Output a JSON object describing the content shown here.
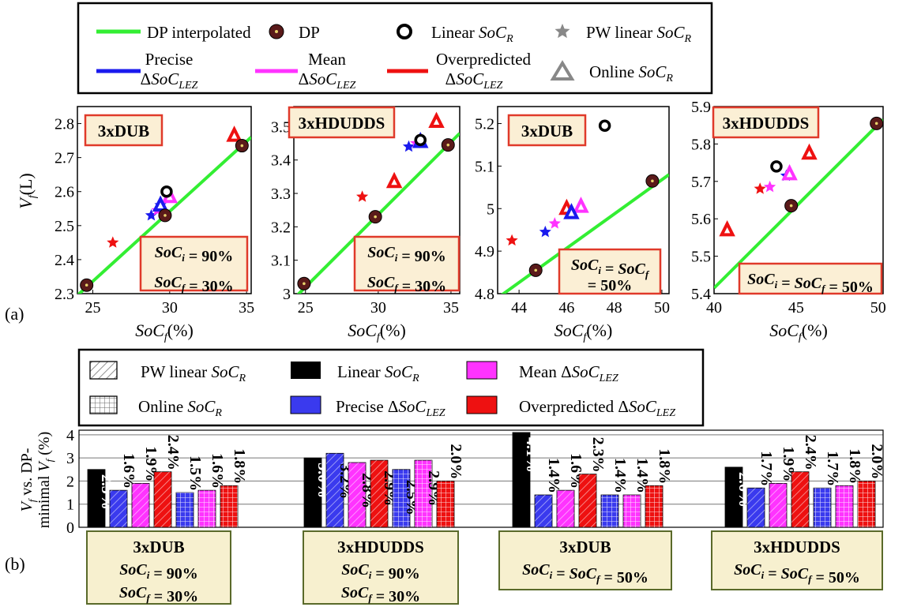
{
  "panel_labels": {
    "a": "(a)",
    "b": "(b)"
  },
  "colors": {
    "dp_line": "#33ee33",
    "dp": "#5a1a1a",
    "linear": "#000000",
    "pw_linear": "#ee1111",
    "online": "#ee1111",
    "precise": "#1a1aee",
    "mean": "#ff33ff",
    "overpredicted": "#ee1111",
    "box_fill": "#fbefd5",
    "box_border": "#e03a2a",
    "bbox_fill": "#f7f0cf",
    "bbox_border": "#5a6a2a"
  },
  "legend_a": {
    "dp_interpolated": "DP interpolated",
    "dp": "DP",
    "linear": "Linear",
    "pw_linear": "PW linear",
    "precise_1": "Precise",
    "mean_1": "Mean",
    "over_1": "Overpredicted",
    "online": "Online",
    "soc": "SoC",
    "r": "R",
    "lez": "LEZ",
    "delta": "Δ"
  },
  "legend_b": {
    "pw_linear": "PW linear",
    "linear": "Linear",
    "mean": "Mean",
    "online": "Online",
    "precise": "Precise",
    "over": "Overpredicted",
    "delta": "Δ",
    "soc": "SoC",
    "r": "R",
    "lez": "LEZ"
  },
  "axis_labels": {
    "ya_v": "V",
    "ya_f": "f",
    "ya_unit": "(L)",
    "xa_soc": "SoC",
    "xa_f": "f",
    "xa_unit": "(%)",
    "yb_line1_v": "V",
    "yb_line1_f": "f",
    "yb_line1_rest": " vs. DP-",
    "yb_line2_a": "minimal ",
    "yb_line2_v": "V",
    "yb_line2_f": "f",
    "yb_line2_unit": " (%)"
  },
  "chart_data": [
    {
      "type": "scatter",
      "title": "3xDUB",
      "box_lines": [
        "SoCi = 90%",
        "SoCf = 30%"
      ],
      "xlabel": "SoCf (%)",
      "ylabel": "Vf (L)",
      "xlim": [
        24,
        35.3
      ],
      "ylim": [
        2.3,
        2.85
      ],
      "xticks": [
        25,
        30,
        35
      ],
      "yticks": [
        2.3,
        2.4,
        2.5,
        2.6,
        2.7,
        2.8
      ],
      "dp_interpolated": [
        [
          24,
          2.295
        ],
        [
          35.3,
          2.76
        ]
      ],
      "series": {
        "dp": [
          [
            24.6,
            2.325
          ],
          [
            29.7,
            2.53
          ],
          [
            34.7,
            2.735
          ]
        ],
        "linear": [
          [
            29.8,
            2.6
          ]
        ],
        "pw_linear": [
          [
            26.3,
            2.45
          ]
        ],
        "online": [
          [
            34.2,
            2.765
          ]
        ],
        "precise": [
          [
            28.8,
            2.53
          ],
          [
            29.4,
            2.56
          ]
        ],
        "mean": [
          [
            29.2,
            2.545
          ],
          [
            30.0,
            2.585
          ]
        ]
      }
    },
    {
      "type": "scatter",
      "title": "3xHDUDDS",
      "box_lines": [
        "SoCi = 90%",
        "SoCf = 30%"
      ],
      "xlabel": "SoCf (%)",
      "ylabel": "",
      "xlim": [
        24.2,
        35.6
      ],
      "ylim": [
        3.0,
        3.56
      ],
      "xticks": [
        25,
        30,
        35
      ],
      "yticks": [
        3.0,
        3.1,
        3.2,
        3.3,
        3.4,
        3.5
      ],
      "dp_interpolated": [
        [
          24.2,
          2.985
        ],
        [
          35.6,
          3.48
        ]
      ],
      "series": {
        "dp": [
          [
            24.9,
            3.03
          ],
          [
            29.8,
            3.23
          ],
          [
            34.8,
            3.445
          ]
        ],
        "linear": [
          [
            32.9,
            3.46
          ]
        ],
        "pw_linear": [
          [
            28.9,
            3.29
          ]
        ],
        "online": [
          [
            31.1,
            3.335
          ],
          [
            34.0,
            3.515
          ]
        ],
        "precise": [
          [
            32.1,
            3.44
          ],
          [
            32.9,
            3.455
          ]
        ],
        "mean": [
          [
            32.6,
            3.45
          ]
        ]
      }
    },
    {
      "type": "scatter",
      "title": "3xDUB",
      "box_lines": [
        "SoCi = SoCf",
        "= 50%"
      ],
      "xlabel": "SoCf (%)",
      "ylabel": "",
      "xlim": [
        43.1,
        50.3
      ],
      "ylim": [
        4.8,
        5.24
      ],
      "xticks": [
        44,
        46,
        48,
        50
      ],
      "yticks": [
        4.8,
        4.9,
        5.0,
        5.1,
        5.2
      ],
      "dp_interpolated": [
        [
          43.1,
          4.79
        ],
        [
          50.3,
          5.08
        ]
      ],
      "series": {
        "dp": [
          [
            44.7,
            4.855
          ],
          [
            49.6,
            5.065
          ]
        ],
        "linear": [
          [
            47.6,
            5.195
          ]
        ],
        "pw_linear": [
          [
            43.7,
            4.925
          ]
        ],
        "online": [
          [
            46.0,
            5.0
          ]
        ],
        "precise": [
          [
            45.1,
            4.945
          ],
          [
            46.2,
            4.99
          ]
        ],
        "mean": [
          [
            45.5,
            4.965
          ],
          [
            46.6,
            5.005
          ]
        ]
      }
    },
    {
      "type": "scatter",
      "title": "3xHDUDDS",
      "box_lines": [
        "SoCi = SoCf = 50%"
      ],
      "xlabel": "SoCf (%)",
      "ylabel": "",
      "xlim": [
        40,
        50.3
      ],
      "ylim": [
        5.4,
        5.9
      ],
      "xticks": [
        40,
        45,
        50
      ],
      "yticks": [
        5.4,
        5.5,
        5.6,
        5.7,
        5.8,
        5.9
      ],
      "dp_interpolated": [
        [
          40,
          5.415
        ],
        [
          50.3,
          5.865
        ]
      ],
      "series": {
        "dp": [
          [
            44.7,
            5.635
          ],
          [
            49.9,
            5.855
          ]
        ],
        "linear": [
          [
            43.8,
            5.74
          ]
        ],
        "pw_linear": [
          [
            42.8,
            5.68
          ]
        ],
        "online": [
          [
            40.8,
            5.57
          ],
          [
            45.8,
            5.775
          ]
        ],
        "precise": [
          [
            44.4,
            5.715
          ]
        ],
        "mean": [
          [
            43.4,
            5.685
          ],
          [
            44.6,
            5.72
          ]
        ]
      }
    },
    {
      "type": "bar",
      "ylabel": "Vf vs. DP-minimal Vf (%)",
      "ylim": [
        0,
        4.2
      ],
      "yticks": [
        0,
        1,
        2,
        3,
        4
      ],
      "groups": [
        {
          "title": "3xDUB",
          "lines": [
            "SoCi = 90%",
            "SoCf = 30%"
          ],
          "bars": [
            {
              "series": "linear",
              "value": 2.5,
              "label": "2.5%"
            },
            {
              "series": "precise_pw",
              "value": 1.6,
              "label": "1.6%"
            },
            {
              "series": "mean_pw",
              "value": 1.9,
              "label": "1.9%"
            },
            {
              "series": "over_pw",
              "value": 2.4,
              "label": "2.4%"
            },
            {
              "series": "precise_online",
              "value": 1.5,
              "label": "1.5%"
            },
            {
              "series": "mean_online",
              "value": 1.6,
              "label": "1.6%"
            },
            {
              "series": "over_online",
              "value": 1.8,
              "label": "1.8%"
            }
          ]
        },
        {
          "title": "3xHDUDDS",
          "lines": [
            "SoCi = 90%",
            "SoCf = 30%"
          ],
          "bars": [
            {
              "series": "linear",
              "value": 3.0,
              "label": "3.0%"
            },
            {
              "series": "precise_pw",
              "value": 3.2,
              "label": "3.2%"
            },
            {
              "series": "mean_pw",
              "value": 2.8,
              "label": "2.8%"
            },
            {
              "series": "over_pw",
              "value": 2.9,
              "label": "2.9%"
            },
            {
              "series": "precise_online",
              "value": 2.5,
              "label": "2.5%"
            },
            {
              "series": "mean_online",
              "value": 2.9,
              "label": "2.9%"
            },
            {
              "series": "over_online",
              "value": 2.0,
              "label": "2.0%"
            }
          ]
        },
        {
          "title": "3xDUB",
          "lines": [
            "SoCi = SoCf = 50%"
          ],
          "bars": [
            {
              "series": "linear",
              "value": 4.1,
              "label": "4.1%"
            },
            {
              "series": "precise_pw",
              "value": 1.4,
              "label": "1.4%"
            },
            {
              "series": "mean_pw",
              "value": 1.6,
              "label": "1.6%"
            },
            {
              "series": "over_pw",
              "value": 2.3,
              "label": "2.3%"
            },
            {
              "series": "precise_online",
              "value": 1.4,
              "label": "1.4%"
            },
            {
              "series": "mean_online",
              "value": 1.4,
              "label": "1.4%"
            },
            {
              "series": "over_online",
              "value": 1.8,
              "label": "1.8%"
            }
          ]
        },
        {
          "title": "3xHDUDDS",
          "lines": [
            "SoCi = SoCf = 50%"
          ],
          "bars": [
            {
              "series": "linear",
              "value": 2.6,
              "label": "2.6%"
            },
            {
              "series": "precise_pw",
              "value": 1.7,
              "label": "1.7%"
            },
            {
              "series": "mean_pw",
              "value": 1.9,
              "label": "1.9%"
            },
            {
              "series": "over_pw",
              "value": 2.4,
              "label": "2.4%"
            },
            {
              "series": "precise_online",
              "value": 1.7,
              "label": "1.7%"
            },
            {
              "series": "mean_online",
              "value": 1.8,
              "label": "1.8%"
            },
            {
              "series": "over_online",
              "value": 2.0,
              "label": "2.0%"
            }
          ]
        }
      ]
    }
  ]
}
